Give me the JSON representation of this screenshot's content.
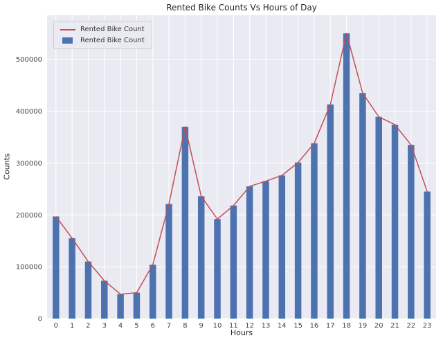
{
  "chart_data": {
    "type": "bar",
    "title": "Rented Bike Counts Vs Hours of Day",
    "xlabel": "Hours",
    "ylabel": "Counts",
    "categories": [
      0,
      1,
      2,
      3,
      4,
      5,
      6,
      7,
      8,
      9,
      10,
      11,
      12,
      13,
      14,
      15,
      16,
      17,
      18,
      19,
      20,
      21,
      22,
      23
    ],
    "series": [
      {
        "name": "Rented Bike Count",
        "type": "line",
        "color": "#c44e52",
        "values": [
          197000,
          155000,
          110000,
          73000,
          47000,
          50000,
          104000,
          221000,
          370000,
          236000,
          192000,
          218000,
          255000,
          265000,
          276000,
          301000,
          338000,
          413000,
          550000,
          435000,
          389000,
          374000,
          335000,
          245000
        ]
      },
      {
        "name": "Rented Bike Count",
        "type": "bar",
        "color": "#4c72b0",
        "values": [
          197000,
          155000,
          110000,
          73000,
          47000,
          50000,
          104000,
          221000,
          370000,
          236000,
          192000,
          218000,
          255000,
          265000,
          276000,
          301000,
          338000,
          413000,
          550000,
          435000,
          389000,
          374000,
          335000,
          245000
        ]
      }
    ],
    "ylim": [
      0,
      585000
    ],
    "yticks": [
      0,
      100000,
      200000,
      300000,
      400000,
      500000
    ],
    "grid": true,
    "legend_position": "upper left",
    "plot_bg": "#eaeaf2",
    "grid_color": "#ffffff"
  }
}
